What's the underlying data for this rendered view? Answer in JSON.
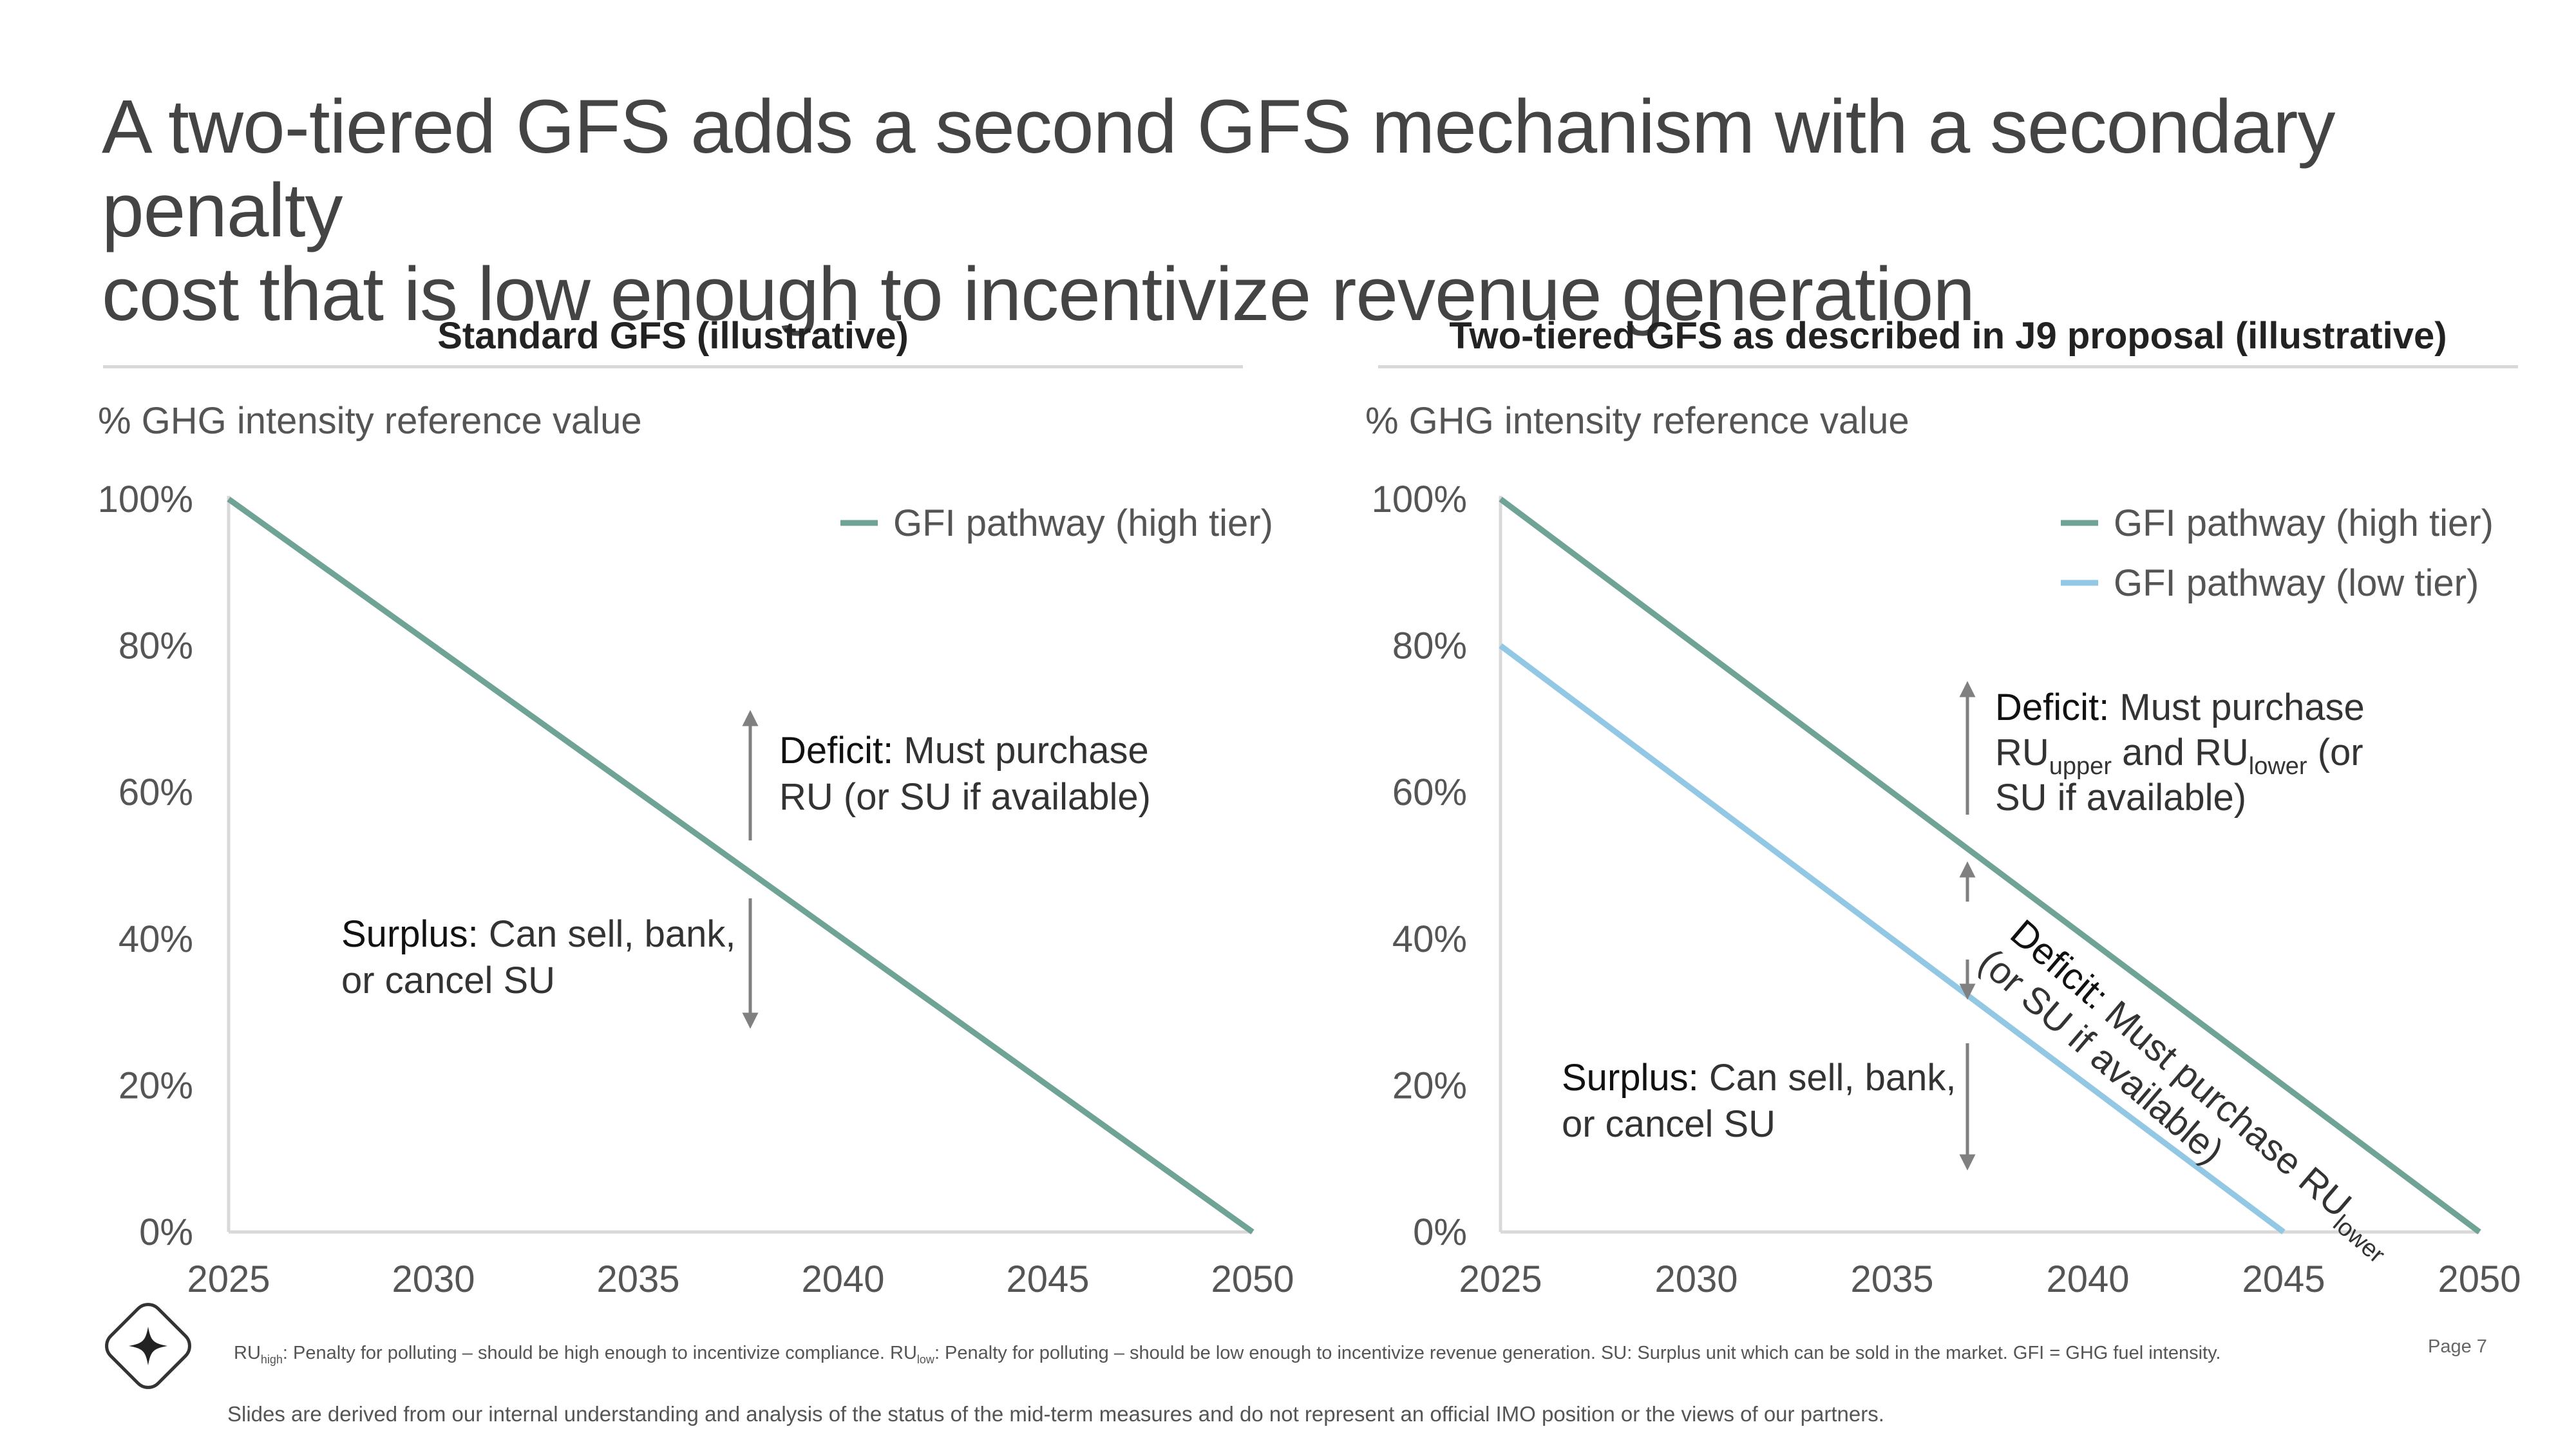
{
  "title": {
    "line1": "A two-tiered GFS adds a second GFS mechanism with a secondary penalty",
    "line2": "cost that is low enough to incentivize revenue generation"
  },
  "colors": {
    "high_tier": "#6FA396",
    "low_tier": "#93C8E4",
    "axis": "#d9d9d9",
    "arrow": "#808080"
  },
  "left_panel": {
    "heading": "Standard GFS (illustrative)",
    "y_axis_title": "% GHG intensity reference value",
    "legend": [
      {
        "label": "GFI pathway (high tier)",
        "color": "#6FA396"
      }
    ],
    "annotations": {
      "deficit_bold": "Deficit:",
      "deficit_line1_rest": " Must purchase",
      "deficit_line2": "RU (or SU if available)",
      "surplus_bold": "Surplus:",
      "surplus_line1_rest": " Can sell, bank,",
      "surplus_line2": "or cancel SU"
    }
  },
  "right_panel": {
    "heading": "Two-tiered GFS as described in J9 proposal (illustrative)",
    "y_axis_title": "% GHG intensity reference value",
    "legend": [
      {
        "label": "GFI pathway (high tier)",
        "color": "#6FA396"
      },
      {
        "label": "GFI pathway (low tier)",
        "color": "#93C8E4"
      }
    ],
    "annotations": {
      "deficit_bold": "Deficit:",
      "deficit_line1_rest": " Must purchase",
      "deficit_line2_a": "RU",
      "deficit_line2_sub_a": "upper",
      "deficit_line2_b": " and RU",
      "deficit_line2_sub_b": "lower",
      "deficit_line2_c": " (or",
      "deficit_line3": "SU if available)",
      "mid_bold": "Deficit:",
      "mid_line1_rest": " Must purchase RU",
      "mid_line1_sub": "lower",
      "mid_line2": "(or SU if available)",
      "surplus_bold": "Surplus:",
      "surplus_line1_rest": " Can sell, bank,",
      "surplus_line2": "or cancel SU"
    }
  },
  "chart_data": [
    {
      "type": "line",
      "title": "Standard GFS (illustrative)",
      "ylabel": "% GHG intensity reference value",
      "x_ticks": [
        "2025",
        "2030",
        "2035",
        "2040",
        "2045",
        "2050"
      ],
      "y_ticks": [
        "0%",
        "20%",
        "40%",
        "60%",
        "80%",
        "100%"
      ],
      "xlim": [
        2025,
        2050
      ],
      "ylim": [
        0,
        100
      ],
      "legend_position": "top-right",
      "grid": false,
      "series": [
        {
          "name": "GFI pathway (high tier)",
          "x": [
            2025,
            2050
          ],
          "y": [
            100,
            0
          ],
          "color": "#6FA396"
        }
      ]
    },
    {
      "type": "line",
      "title": "Two-tiered GFS as described in J9 proposal (illustrative)",
      "ylabel": "% GHG intensity reference value",
      "x_ticks": [
        "2025",
        "2030",
        "2035",
        "2040",
        "2045",
        "2050"
      ],
      "y_ticks": [
        "0%",
        "20%",
        "40%",
        "60%",
        "80%",
        "100%"
      ],
      "xlim": [
        2025,
        2050
      ],
      "ylim": [
        0,
        100
      ],
      "legend_position": "top-right",
      "grid": false,
      "series": [
        {
          "name": "GFI pathway (high tier)",
          "x": [
            2025,
            2050
          ],
          "y": [
            100,
            0
          ],
          "color": "#6FA396"
        },
        {
          "name": "GFI pathway (low tier)",
          "x": [
            2025,
            2045
          ],
          "y": [
            80,
            0
          ],
          "color": "#93C8E4"
        }
      ]
    }
  ],
  "footnote": {
    "ru_high_a": "RU",
    "ru_high_sub": "high",
    "ru_high_text": ": Penalty for polluting – should be high enough to incentivize compliance. ",
    "ru_low_a": "RU",
    "ru_low_sub": "low",
    "ru_low_text": ": Penalty for polluting – should be low enough to incentivize revenue generation. SU: Surplus unit which can be sold in the market. GFI = GHG fuel intensity.",
    "disclaimer": "Slides are derived from our internal understanding and analysis of the status of the mid-term measures and do not represent an official IMO position or the views of our partners."
  },
  "page_label": "Page 7",
  "logo_icon": "sparkle-diamond-icon"
}
